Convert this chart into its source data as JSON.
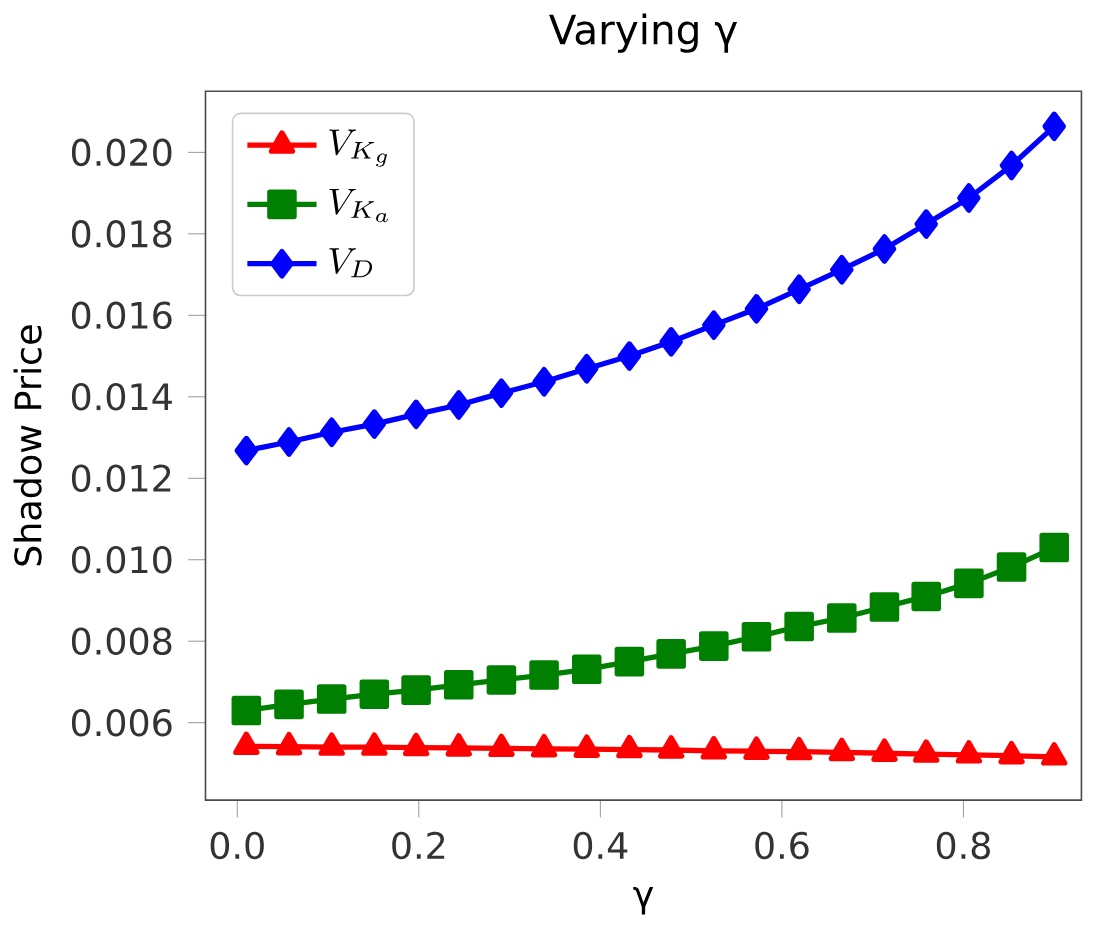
{
  "chart_data": {
    "type": "line",
    "title": "Varying γ",
    "xlabel": "γ",
    "ylabel": "Shadow Price",
    "x": [
      0.01,
      0.057,
      0.104,
      0.151,
      0.197,
      0.244,
      0.291,
      0.338,
      0.385,
      0.432,
      0.478,
      0.525,
      0.572,
      0.619,
      0.666,
      0.713,
      0.759,
      0.806,
      0.853,
      0.9
    ],
    "series": [
      {
        "name": "V_{K_g}",
        "color": "#ff0000",
        "marker": "triangle",
        "values": [
          0.00542,
          0.00541,
          0.0054,
          0.0054,
          0.00539,
          0.00538,
          0.00537,
          0.00536,
          0.00535,
          0.00534,
          0.00533,
          0.00531,
          0.0053,
          0.00529,
          0.00527,
          0.00525,
          0.00523,
          0.00521,
          0.00519,
          0.00516
        ]
      },
      {
        "name": "V_{K_a}",
        "color": "#008000",
        "marker": "square",
        "values": [
          0.0063,
          0.00645,
          0.00658,
          0.0067,
          0.0068,
          0.00693,
          0.00705,
          0.00717,
          0.00731,
          0.0075,
          0.00769,
          0.00788,
          0.00811,
          0.00836,
          0.00857,
          0.00884,
          0.0091,
          0.00942,
          0.00982,
          0.0103
        ]
      },
      {
        "name": "V_D",
        "color": "#0000ff",
        "marker": "diamond",
        "values": [
          0.01268,
          0.01289,
          0.01313,
          0.01333,
          0.01357,
          0.0138,
          0.01409,
          0.01437,
          0.01469,
          0.015,
          0.01535,
          0.01576,
          0.01616,
          0.01664,
          0.01712,
          0.01763,
          0.01824,
          0.01888,
          0.01968,
          0.02064
        ]
      }
    ],
    "xlim": [
      -0.035,
      0.93
    ],
    "ylim": [
      0.0041,
      0.0215
    ],
    "xticks": [
      {
        "value": 0,
        "label": "0.0"
      },
      {
        "value": 0.2,
        "label": "0.2"
      },
      {
        "value": 0.4,
        "label": "0.4"
      },
      {
        "value": 0.6,
        "label": "0.6"
      },
      {
        "value": 0.8,
        "label": "0.8"
      }
    ],
    "yticks": [
      {
        "value": 0.006,
        "label": "0.006"
      },
      {
        "value": 0.008,
        "label": "0.008"
      },
      {
        "value": 0.01,
        "label": "0.010"
      },
      {
        "value": 0.012,
        "label": "0.012"
      },
      {
        "value": 0.014,
        "label": "0.014"
      },
      {
        "value": 0.016,
        "label": "0.016"
      },
      {
        "value": 0.018,
        "label": "0.018"
      },
      {
        "value": 0.02,
        "label": "0.020"
      }
    ],
    "legend": "top left",
    "line_style": "solid"
  }
}
